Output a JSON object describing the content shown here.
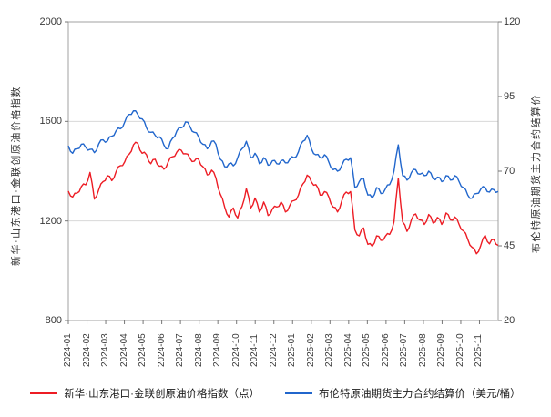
{
  "figure": {
    "background": "#ffffff",
    "left_axis": {
      "title": "新华·山东港口·金联创原油价格指数",
      "ticks": [
        2000,
        1600,
        1200,
        800
      ],
      "min": 800,
      "max": 2000
    },
    "right_axis": {
      "title": "布伦特原油期货主力合约结算价",
      "ticks": [
        120,
        95,
        70,
        45,
        20
      ],
      "min": 20,
      "max": 120
    },
    "x_axis": {
      "tick_labels": [
        "2024-01",
        "2024-02",
        "2024-03",
        "2024-04",
        "2024-05",
        "2024-06",
        "2024-07",
        "2024-08",
        "2024-09",
        "2024-10",
        "2024-11",
        "2024-12",
        "2025-01",
        "2025-02",
        "2025-03",
        "2025-04",
        "2025-05",
        "2025-06",
        "2025-07",
        "2025-08",
        "2025-09",
        "2025-10",
        "2025-11"
      ]
    },
    "legend": {
      "position": "bottom-center",
      "items": [
        {
          "label": "新华·山东港口·金联创原油价格指数（点）",
          "color": "#ed1c24"
        },
        {
          "label": "布伦特原油期货主力合约结算价（美元/桶）",
          "color": "#2166cc"
        }
      ]
    },
    "colors": {
      "red_series": "#ed1c24",
      "blue_series": "#2166cc",
      "grid": "#d8d8d8",
      "box_border": "#a0a0a0",
      "tick_text": "#3a3a3a"
    }
  },
  "chart_data": {
    "type": "line",
    "title": "",
    "xlabel": "",
    "left_ylabel": "新华·山东港口·金联创原油价格指数",
    "right_ylabel": "布伦特原油期货主力合约结算价",
    "x_tick_labels": [
      "2024-01",
      "2024-02",
      "2024-03",
      "2024-04",
      "2024-05",
      "2024-06",
      "2024-07",
      "2024-08",
      "2024-09",
      "2024-10",
      "2024-11",
      "2024-12",
      "2025-01",
      "2025-02",
      "2025-03",
      "2025-04",
      "2025-05",
      "2025-06",
      "2025-07",
      "2025-08",
      "2025-09",
      "2025-10",
      "2025-11"
    ],
    "x_range_months": 23,
    "left_ylim": [
      800,
      2000
    ],
    "right_ylim": [
      20,
      120
    ],
    "left_yticks": [
      2000,
      1600,
      1200,
      800
    ],
    "right_yticks": [
      120,
      95,
      70,
      45,
      20
    ],
    "grid": "horizontal-at-left-inner-ticks",
    "legend_position": "bottom",
    "sampling": "weekly, Jan 2024 through Nov 2025",
    "series": [
      {
        "name": "新华·山东港口·金联创原油价格指数（点）",
        "axis": "left",
        "color": "#ed1c24",
        "values": [
          1320,
          1296,
          1312,
          1338,
          1345,
          1395,
          1288,
          1325,
          1358,
          1382,
          1362,
          1398,
          1422,
          1438,
          1468,
          1506,
          1512,
          1472,
          1466,
          1430,
          1448,
          1420,
          1408,
          1437,
          1458,
          1477,
          1484,
          1470,
          1452,
          1440,
          1448,
          1418,
          1385,
          1404,
          1372,
          1308,
          1256,
          1216,
          1252,
          1212,
          1258,
          1330,
          1252,
          1292,
          1236,
          1276,
          1222,
          1248,
          1256,
          1276,
          1236,
          1262,
          1282,
          1304,
          1348,
          1384,
          1356,
          1346,
          1304,
          1318,
          1296,
          1256,
          1236,
          1282,
          1316,
          1318,
          1164,
          1140,
          1172,
          1106,
          1098,
          1140,
          1122,
          1138,
          1146,
          1196,
          1372,
          1196,
          1158,
          1204,
          1228,
          1204,
          1186,
          1226,
          1192,
          1214,
          1186,
          1232,
          1204,
          1216,
          1186,
          1160,
          1126,
          1094,
          1068,
          1102,
          1142,
          1108,
          1126,
          1102
        ]
      },
      {
        "name": "布伦特原油期货主力合约结算价（美元/桶）",
        "axis": "right",
        "color": "#2166cc",
        "values": [
          78.5,
          76.0,
          77.5,
          79.0,
          78.0,
          77.3,
          76.2,
          79.1,
          80.5,
          80.1,
          81.7,
          83.5,
          84.2,
          86.5,
          89.0,
          90.2,
          89.0,
          87.5,
          84.5,
          83.0,
          82.0,
          81.5,
          78.8,
          77.5,
          81.0,
          83.5,
          84.5,
          86.5,
          85.0,
          83.0,
          81.5,
          79.0,
          77.5,
          80.0,
          79.0,
          74.0,
          71.5,
          72.5,
          71.8,
          74.5,
          77.5,
          80.0,
          74.5,
          76.0,
          72.5,
          74.5,
          72.0,
          73.5,
          72.5,
          73.5,
          72.8,
          74.0,
          74.5,
          76.5,
          80.0,
          82.0,
          77.5,
          75.5,
          74.5,
          75.5,
          73.0,
          70.5,
          70.0,
          72.0,
          74.0,
          74.5,
          64.5,
          66.5,
          67.5,
          62.0,
          61.0,
          64.5,
          62.5,
          64.0,
          65.5,
          70.0,
          78.8,
          68.5,
          67.0,
          69.5,
          70.5,
          69.0,
          68.5,
          70.0,
          67.5,
          68.0,
          66.5,
          68.5,
          67.0,
          68.5,
          66.5,
          64.5,
          62.0,
          61.0,
          62.5,
          64.0,
          64.5,
          63.0,
          63.8,
          63.2
        ]
      }
    ]
  }
}
